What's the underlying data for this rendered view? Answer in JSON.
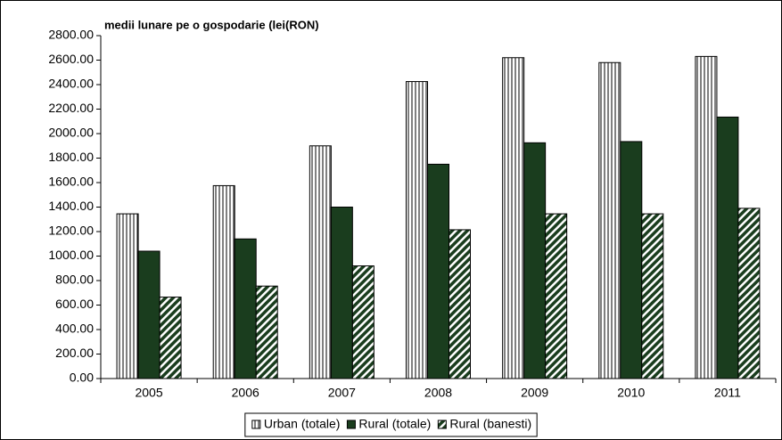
{
  "chart_data": {
    "type": "bar",
    "title": "medii lunare pe o gospodarie (lei(RON)",
    "categories": [
      "2005",
      "2006",
      "2007",
      "2008",
      "2009",
      "2010",
      "2011"
    ],
    "series": [
      {
        "name": "Urban (totale)",
        "color": "#1a3d1e",
        "pattern": "vertical",
        "values": [
          1345,
          1575,
          1900,
          2425,
          2620,
          2580,
          2630
        ]
      },
      {
        "name": "Rural (totale)",
        "color": "#1a3d1e",
        "pattern": "solid",
        "values": [
          1040,
          1140,
          1400,
          1750,
          1925,
          1935,
          2135
        ]
      },
      {
        "name": "Rural (banesti)",
        "color": "#1a3d1e",
        "pattern": "diagonal",
        "values": [
          665,
          755,
          920,
          1215,
          1345,
          1345,
          1390
        ]
      }
    ],
    "ylim": [
      0,
      2800
    ],
    "yticks": [
      {
        "value": 0,
        "label": "0.00"
      },
      {
        "value": 200,
        "label": "200.00"
      },
      {
        "value": 400,
        "label": "400.00"
      },
      {
        "value": 600,
        "label": "600.00"
      },
      {
        "value": 800,
        "label": "800.00"
      },
      {
        "value": 1000,
        "label": "1000.00"
      },
      {
        "value": 1200,
        "label": "1200.00"
      },
      {
        "value": 1400,
        "label": "1400.00"
      },
      {
        "value": 1600,
        "label": "1600.00"
      },
      {
        "value": 1800,
        "label": "1800.00"
      },
      {
        "value": 2000,
        "label": "2000.00"
      },
      {
        "value": 2200,
        "label": "2200.00"
      },
      {
        "value": 2400,
        "label": "2400.00"
      },
      {
        "value": 2600,
        "label": "2600.00"
      },
      {
        "value": 2800,
        "label": "2800.00"
      }
    ],
    "grid": false,
    "legend": "bottom"
  }
}
